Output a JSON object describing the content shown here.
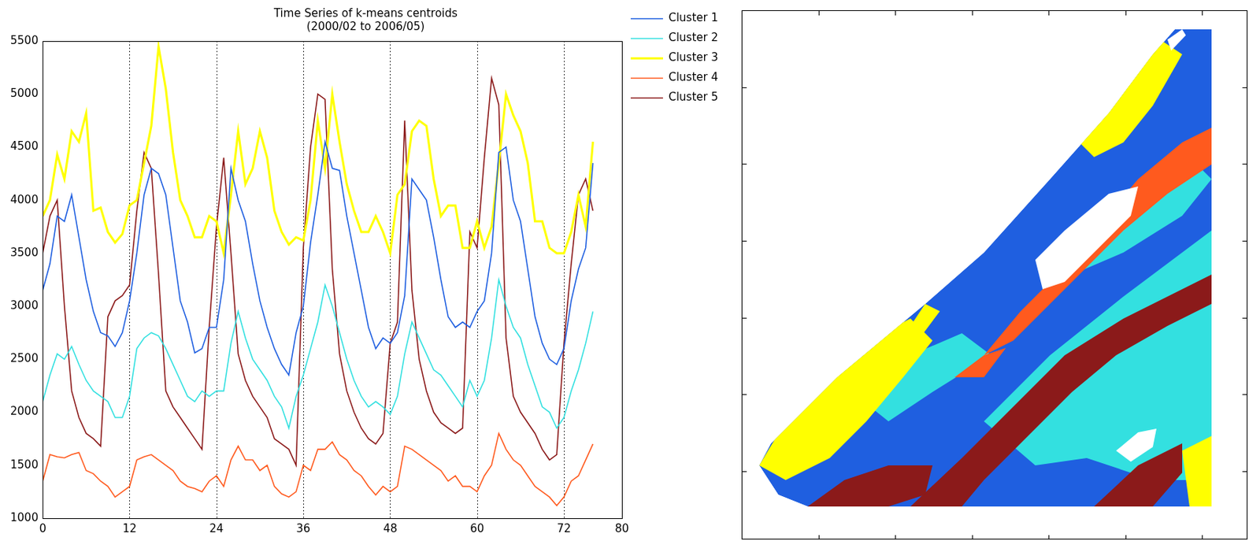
{
  "chart_data": {
    "type": "line",
    "title": [
      "Time Series of k-means centroids",
      "(2000/02 to 2006/05)"
    ],
    "x": [
      0,
      1,
      2,
      3,
      4,
      5,
      6,
      7,
      8,
      9,
      10,
      11,
      12,
      13,
      14,
      15,
      16,
      17,
      18,
      19,
      20,
      21,
      22,
      23,
      24,
      25,
      26,
      27,
      28,
      29,
      30,
      31,
      32,
      33,
      34,
      35,
      36,
      37,
      38,
      39,
      40,
      41,
      42,
      43,
      44,
      45,
      46,
      47,
      48,
      49,
      50,
      51,
      52,
      53,
      54,
      55,
      56,
      57,
      58,
      59,
      60,
      61,
      62,
      63,
      64,
      65,
      66,
      67,
      68,
      69,
      70,
      71,
      72,
      73,
      74,
      75,
      76
    ],
    "series": [
      {
        "name": "Cluster 1",
        "color": "#1f5fe0",
        "values": [
          3150,
          3400,
          3850,
          3800,
          4050,
          3650,
          3250,
          2950,
          2750,
          2720,
          2620,
          2750,
          3050,
          3500,
          4050,
          4300,
          4250,
          4050,
          3550,
          3050,
          2850,
          2560,
          2600,
          2800,
          2800,
          3250,
          4300,
          4000,
          3800,
          3400,
          3050,
          2800,
          2600,
          2450,
          2350,
          2750,
          3000,
          3600,
          4050,
          4550,
          4300,
          4280,
          3850,
          3500,
          3150,
          2800,
          2600,
          2700,
          2650,
          2750,
          3100,
          4200,
          4100,
          4000,
          3650,
          3250,
          2900,
          2800,
          2850,
          2800,
          2950,
          3050,
          3500,
          4450,
          4500,
          4000,
          3800,
          3350,
          2900,
          2650,
          2500,
          2450,
          2600,
          3050,
          3350,
          3550,
          4350
        ]
      },
      {
        "name": "Cluster 2",
        "color": "#33e0e0",
        "values": [
          2100,
          2350,
          2550,
          2500,
          2620,
          2450,
          2300,
          2200,
          2150,
          2100,
          1950,
          1950,
          2150,
          2600,
          2700,
          2750,
          2720,
          2600,
          2450,
          2300,
          2150,
          2100,
          2200,
          2150,
          2200,
          2200,
          2650,
          2950,
          2700,
          2500,
          2400,
          2300,
          2150,
          2050,
          1850,
          2150,
          2350,
          2600,
          2850,
          3200,
          3000,
          2750,
          2500,
          2300,
          2150,
          2050,
          2100,
          2050,
          1980,
          2150,
          2550,
          2850,
          2700,
          2550,
          2400,
          2350,
          2250,
          2150,
          2050,
          2300,
          2150,
          2300,
          2700,
          3250,
          3000,
          2800,
          2700,
          2450,
          2250,
          2050,
          2000,
          1850,
          1950,
          2200,
          2400,
          2650,
          2950
        ]
      },
      {
        "name": "Cluster 3",
        "color": "#ffff00",
        "values": [
          3850,
          4000,
          4430,
          4200,
          4650,
          4550,
          4820,
          3900,
          3930,
          3700,
          3600,
          3680,
          3950,
          4000,
          4350,
          4700,
          5450,
          5050,
          4450,
          4000,
          3850,
          3650,
          3650,
          3850,
          3800,
          3500,
          4050,
          4650,
          4150,
          4300,
          4650,
          4400,
          3900,
          3700,
          3580,
          3650,
          3620,
          4000,
          4750,
          4300,
          5000,
          4550,
          4150,
          3900,
          3700,
          3700,
          3850,
          3700,
          3500,
          4050,
          4150,
          4650,
          4750,
          4700,
          4200,
          3850,
          3950,
          3950,
          3550,
          3550,
          3800,
          3550,
          3750,
          4350,
          5000,
          4800,
          4650,
          4350,
          3800,
          3800,
          3550,
          3500,
          3500,
          3700,
          4050,
          3750,
          4550
        ]
      },
      {
        "name": "Cluster 4",
        "color": "#ff5a1e",
        "values": [
          1350,
          1600,
          1580,
          1570,
          1600,
          1620,
          1450,
          1420,
          1350,
          1300,
          1200,
          1250,
          1300,
          1550,
          1580,
          1600,
          1550,
          1500,
          1450,
          1350,
          1300,
          1280,
          1250,
          1350,
          1400,
          1300,
          1550,
          1680,
          1550,
          1550,
          1450,
          1500,
          1300,
          1230,
          1200,
          1250,
          1500,
          1450,
          1650,
          1650,
          1720,
          1600,
          1550,
          1450,
          1400,
          1300,
          1220,
          1300,
          1250,
          1300,
          1680,
          1650,
          1600,
          1550,
          1500,
          1450,
          1350,
          1400,
          1300,
          1300,
          1250,
          1400,
          1500,
          1800,
          1650,
          1550,
          1500,
          1400,
          1300,
          1250,
          1200,
          1120,
          1200,
          1350,
          1400,
          1550,
          1700
        ]
      },
      {
        "name": "Cluster 5",
        "color": "#8b1a1a",
        "values": [
          3500,
          3850,
          4000,
          3000,
          2200,
          1950,
          1800,
          1750,
          1680,
          2900,
          3050,
          3100,
          3200,
          3900,
          4450,
          4300,
          3300,
          2200,
          2050,
          1950,
          1850,
          1750,
          1650,
          2800,
          3750,
          4400,
          3500,
          2550,
          2300,
          2150,
          2050,
          1950,
          1750,
          1700,
          1650,
          1500,
          3550,
          4500,
          5000,
          4950,
          3350,
          2550,
          2200,
          2000,
          1850,
          1750,
          1700,
          1800,
          2650,
          2850,
          4750,
          3150,
          2500,
          2200,
          2000,
          1900,
          1850,
          1800,
          1850,
          3700,
          3550,
          4400,
          5150,
          4900,
          2700,
          2150,
          2000,
          1900,
          1800,
          1650,
          1550,
          1600,
          2650,
          3400,
          4050,
          4200,
          3900
        ]
      }
    ],
    "xlim": [
      0,
      80
    ],
    "xticks": [
      0,
      12,
      24,
      36,
      48,
      60,
      72,
      80
    ],
    "ylim": [
      1000,
      5500
    ],
    "yticks": [
      1000,
      1500,
      2000,
      2500,
      3000,
      3500,
      4000,
      4500,
      5000,
      5500
    ],
    "grid": "x",
    "legend": "right"
  }
}
